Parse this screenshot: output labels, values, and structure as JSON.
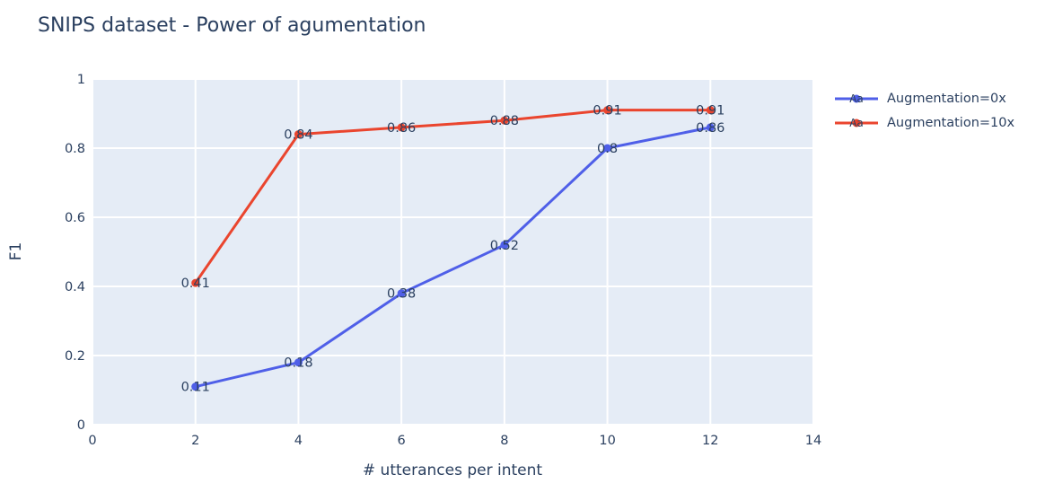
{
  "title": "SNIPS dataset - Power of agumentation",
  "chart_data": {
    "type": "line",
    "title": "SNIPS dataset - Power of agumentation",
    "xlabel": "# utterances per intent",
    "ylabel": "F1",
    "xlim": [
      0,
      14
    ],
    "ylim": [
      0,
      1
    ],
    "grid": true,
    "x_ticks": {
      "values": [
        0,
        2,
        4,
        6,
        8,
        10,
        12,
        14
      ],
      "labels": [
        "0",
        "2",
        "4",
        "6",
        "8",
        "10",
        "12",
        "14"
      ]
    },
    "y_ticks": {
      "values": [
        0,
        0.2,
        0.4,
        0.6,
        0.8,
        1
      ],
      "labels": [
        "0",
        "0.2",
        "0.4",
        "0.6",
        "0.8",
        "1"
      ]
    },
    "x": [
      2,
      4,
      6,
      8,
      10,
      12
    ],
    "series": [
      {
        "name": "Augmentation=0x",
        "color": "#4f5fe8",
        "values": [
          0.11,
          0.18,
          0.38,
          0.52,
          0.8,
          0.86
        ],
        "point_labels": [
          "0.11",
          "0.18",
          "0.38",
          "0.52",
          "0.8",
          "0.86"
        ]
      },
      {
        "name": "Augmentation=10x",
        "color": "#ea452e",
        "values": [
          0.41,
          0.84,
          0.86,
          0.88,
          0.91,
          0.91
        ],
        "point_labels": [
          "0.41",
          "0.84",
          "0.86",
          "0.88",
          "0.91",
          "0.91"
        ]
      }
    ],
    "legend": {
      "position": "top-right-outside",
      "symbol_text": "Aa"
    },
    "colors": {
      "text": "#2a3f5f",
      "plot_bg": "#e5ecf6",
      "grid": "#ffffff",
      "page_bg": "#ffffff"
    }
  }
}
